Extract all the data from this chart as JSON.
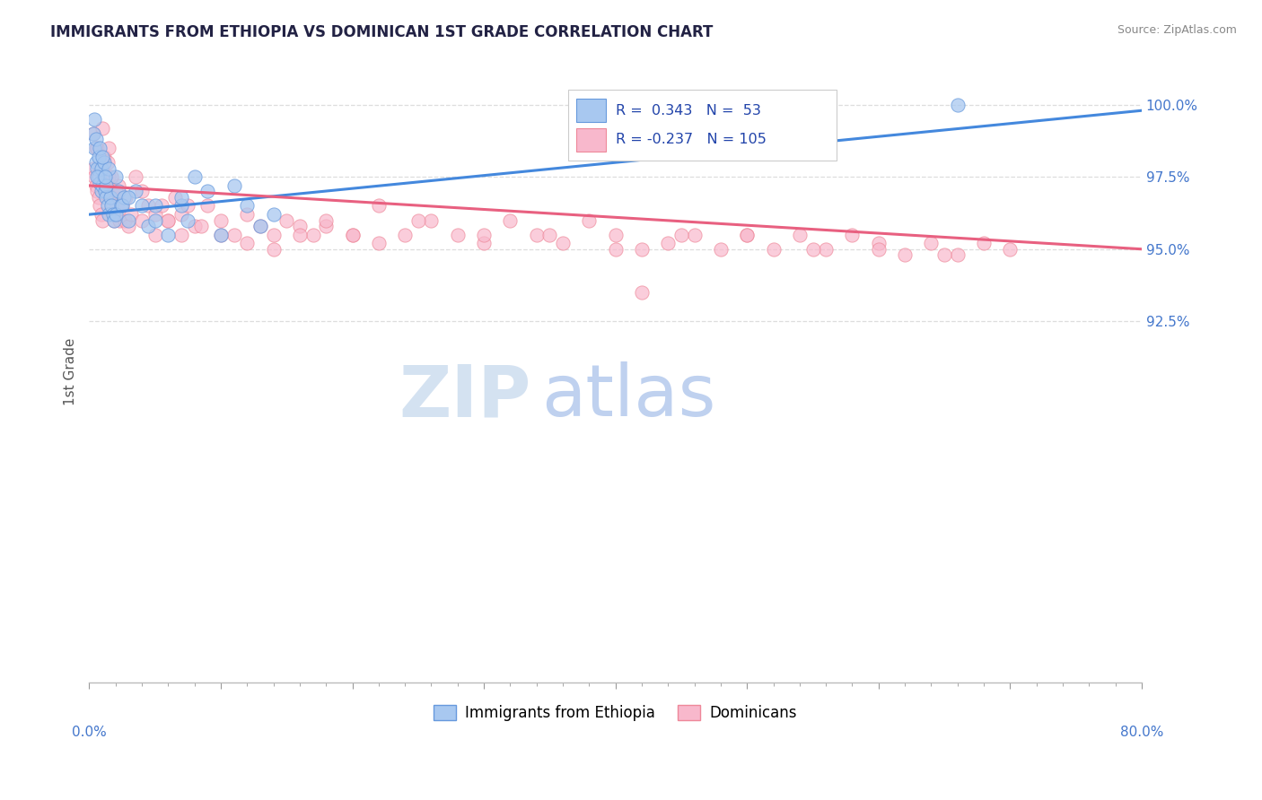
{
  "title": "IMMIGRANTS FROM ETHIOPIA VS DOMINICAN 1ST GRADE CORRELATION CHART",
  "source": "Source: ZipAtlas.com",
  "ylabel": "1st Grade",
  "xlim": [
    0.0,
    80.0
  ],
  "ylim": [
    80.0,
    101.5
  ],
  "yticks": [
    92.5,
    95.0,
    97.5,
    100.0
  ],
  "ytick_labels": [
    "92.5%",
    "95.0%",
    "97.5%",
    "100.0%"
  ],
  "xtick_major": [
    0,
    10,
    20,
    30,
    40,
    50,
    60,
    70,
    80
  ],
  "xtick_labels_show": [
    "0.0%",
    "",
    "",
    "",
    "",
    "",
    "",
    "",
    "80.0%"
  ],
  "ethiopia_color": "#a8c8f0",
  "dominican_color": "#f8b8cc",
  "ethiopia_edge": "#6699dd",
  "dominican_edge": "#ee8899",
  "ethiopia_R": 0.343,
  "ethiopia_N": 53,
  "dominican_R": -0.237,
  "dominican_N": 105,
  "legend_label_eth": "Immigrants from Ethiopia",
  "legend_label_dom": "Dominicans",
  "watermark_zip": "ZIP",
  "watermark_atlas": "atlas",
  "watermark_color_zip": "#d0dff0",
  "watermark_color_atlas": "#b8ccee",
  "ethiopia_x": [
    0.3,
    0.4,
    0.5,
    0.6,
    0.7,
    0.8,
    0.9,
    1.0,
    1.1,
    1.2,
    1.3,
    1.4,
    1.5,
    1.6,
    1.7,
    1.8,
    1.9,
    2.0,
    2.2,
    2.4,
    2.6,
    3.0,
    3.5,
    4.0,
    4.5,
    5.0,
    6.0,
    7.0,
    7.5,
    8.0,
    9.0,
    10.0,
    11.0,
    12.0,
    13.0,
    14.0,
    0.5,
    0.7,
    0.9,
    1.1,
    1.3,
    1.5,
    2.0,
    2.5,
    3.0,
    0.4,
    0.6,
    0.8,
    1.0,
    1.2,
    5.0,
    7.0,
    66.0
  ],
  "ethiopia_y": [
    99.0,
    98.5,
    98.0,
    97.8,
    97.5,
    97.3,
    97.0,
    97.2,
    97.5,
    97.0,
    96.8,
    96.5,
    96.2,
    96.8,
    96.5,
    96.2,
    96.0,
    97.5,
    97.0,
    96.5,
    96.8,
    96.0,
    97.0,
    96.5,
    95.8,
    96.0,
    95.5,
    96.5,
    96.0,
    97.5,
    97.0,
    95.5,
    97.2,
    96.5,
    95.8,
    96.2,
    98.8,
    98.2,
    97.8,
    98.0,
    97.2,
    97.8,
    96.2,
    96.5,
    96.8,
    99.5,
    97.5,
    98.5,
    98.2,
    97.5,
    96.5,
    96.8,
    100.0
  ],
  "dominican_x": [
    0.3,
    0.4,
    0.5,
    0.6,
    0.7,
    0.8,
    0.9,
    1.0,
    1.1,
    1.2,
    1.3,
    1.4,
    1.5,
    1.6,
    1.7,
    1.8,
    1.9,
    2.0,
    2.1,
    2.2,
    2.3,
    2.5,
    2.7,
    3.0,
    3.5,
    4.0,
    4.5,
    5.0,
    5.5,
    6.0,
    6.5,
    7.0,
    7.5,
    8.0,
    9.0,
    10.0,
    11.0,
    12.0,
    13.0,
    14.0,
    15.0,
    16.0,
    17.0,
    18.0,
    20.0,
    22.0,
    24.0,
    26.0,
    28.0,
    30.0,
    32.0,
    34.0,
    36.0,
    38.0,
    40.0,
    42.0,
    44.0,
    46.0,
    48.0,
    50.0,
    52.0,
    54.0,
    56.0,
    58.0,
    60.0,
    62.0,
    64.0,
    66.0,
    68.0,
    70.0,
    0.5,
    0.8,
    1.1,
    1.4,
    1.7,
    2.0,
    2.4,
    2.8,
    3.2,
    4.0,
    5.0,
    6.0,
    7.0,
    8.5,
    10.0,
    12.0,
    14.0,
    16.0,
    18.0,
    20.0,
    22.0,
    25.0,
    30.0,
    35.0,
    40.0,
    45.0,
    50.0,
    55.0,
    60.0,
    65.0,
    0.3,
    0.6,
    1.0,
    1.5,
    42.0
  ],
  "dominican_y": [
    97.8,
    97.5,
    97.2,
    97.0,
    96.8,
    96.5,
    96.2,
    96.0,
    98.0,
    97.5,
    97.0,
    97.2,
    97.5,
    97.0,
    96.8,
    96.5,
    96.0,
    96.8,
    96.5,
    97.2,
    96.0,
    96.5,
    96.0,
    95.8,
    97.5,
    97.0,
    96.5,
    96.2,
    96.5,
    96.0,
    96.8,
    96.2,
    96.5,
    95.8,
    96.5,
    96.0,
    95.5,
    96.2,
    95.8,
    95.5,
    96.0,
    95.8,
    95.5,
    95.8,
    95.5,
    95.2,
    95.5,
    96.0,
    95.5,
    95.2,
    96.0,
    95.5,
    95.2,
    96.0,
    95.5,
    95.0,
    95.2,
    95.5,
    95.0,
    95.5,
    95.0,
    95.5,
    95.0,
    95.5,
    95.2,
    94.8,
    95.2,
    94.8,
    95.2,
    95.0,
    98.5,
    97.8,
    98.2,
    98.0,
    97.5,
    97.0,
    96.5,
    96.8,
    96.2,
    96.0,
    95.5,
    96.0,
    95.5,
    95.8,
    95.5,
    95.2,
    95.0,
    95.5,
    96.0,
    95.5,
    96.5,
    96.0,
    95.5,
    95.5,
    95.0,
    95.5,
    95.5,
    95.0,
    95.0,
    94.8,
    99.0,
    98.5,
    99.2,
    98.5,
    93.5
  ],
  "eth_line_x0": 0.0,
  "eth_line_x1": 80.0,
  "eth_line_y0": 96.2,
  "eth_line_y1": 99.8,
  "dom_line_x0": 0.0,
  "dom_line_x1": 80.0,
  "dom_line_y0": 97.2,
  "dom_line_y1": 95.0,
  "grid_color": "#dddddd",
  "bg_color": "#ffffff",
  "title_color": "#222244",
  "tick_color": "#4477cc"
}
